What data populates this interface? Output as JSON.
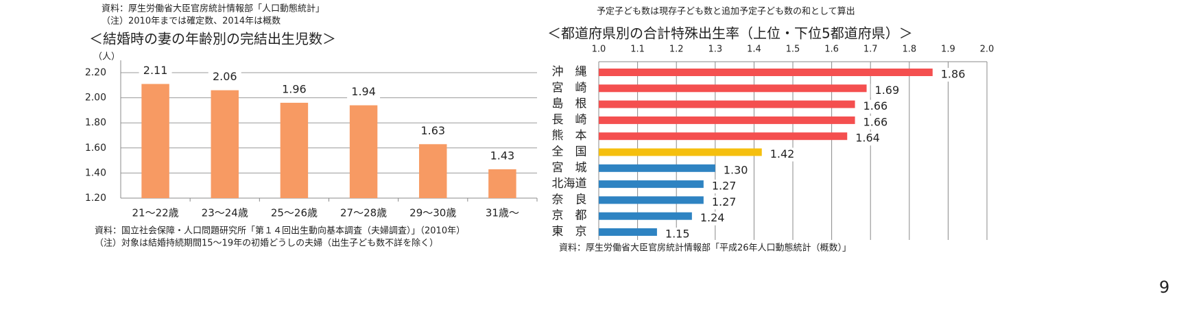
{
  "header_notes": {
    "left": [
      "資料：厚生労働省大臣官房統計情報部「人口動態統計」",
      "（注）2010年までは確定数、2014年は概数"
    ],
    "right": [
      "予定子ども数は現存子ども数と追加予定子ども数の和として算出"
    ]
  },
  "chart_data": [
    {
      "type": "bar",
      "title": "＜結婚時の妻の年齢別の完結出生児数＞",
      "y_label": "（人）",
      "categories": [
        "21～22歳",
        "23～24歳",
        "25～26歳",
        "27～28歳",
        "29～30歳",
        "31歳～"
      ],
      "values": [
        2.11,
        2.06,
        1.96,
        1.94,
        1.63,
        1.43
      ],
      "color": "#f79a63",
      "ylim": [
        1.2,
        2.2
      ],
      "yticks": [
        {
          "value": 1.2,
          "label": "1.20"
        },
        {
          "value": 1.4,
          "label": "1.40"
        },
        {
          "value": 1.6,
          "label": "1.60"
        },
        {
          "value": 1.8,
          "label": "1.80"
        },
        {
          "value": 2.0,
          "label": "2.00"
        },
        {
          "value": 2.2,
          "label": "2.20"
        }
      ],
      "grid": true,
      "source": [
        "資料：国立社会保障・人口問題研究所「第１４回出生動向基本調査（夫婦調査）」（2010年）",
        "（注）対象は結婚持続期間15～19年の初婚どうしの夫婦（出生子ども数不詳を除く）"
      ]
    },
    {
      "type": "barh",
      "title": "＜都道府県別の合計特殊出生率（上位・下位5都道府県）＞",
      "categories": [
        "沖　縄",
        "宮　崎",
        "島　根",
        "長　崎",
        "熊　本",
        "全　国",
        "宮　城",
        "北海道",
        "奈　良",
        "京　都",
        "東　京"
      ],
      "values": [
        1.86,
        1.69,
        1.66,
        1.66,
        1.64,
        1.42,
        1.3,
        1.27,
        1.27,
        1.24,
        1.15
      ],
      "value_labels": [
        "1.86",
        "1.69",
        "1.66",
        "1.66",
        "1.64",
        "1.42",
        "1.30",
        "1.27",
        "1.27",
        "1.24",
        "1.15"
      ],
      "colors": [
        "#f44f4f",
        "#f44f4f",
        "#f44f4f",
        "#f44f4f",
        "#f44f4f",
        "#f5bf0e",
        "#2e83c2",
        "#2e83c2",
        "#2e83c2",
        "#2e83c2",
        "#2e83c2"
      ],
      "xlim": [
        1.0,
        2.0
      ],
      "xticks": [
        {
          "value": 1.0,
          "label": "1.0"
        },
        1.1,
        1.2,
        1.3,
        1.4,
        1.5,
        1.6,
        1.7,
        1.8,
        1.9,
        {
          "value": 2.0,
          "label": "2.0"
        }
      ],
      "grid": true,
      "source": [
        "資料：厚生労働省大臣官房統計情報部「平成26年人口動態統計（概数）」"
      ]
    }
  ],
  "page_number": "9"
}
